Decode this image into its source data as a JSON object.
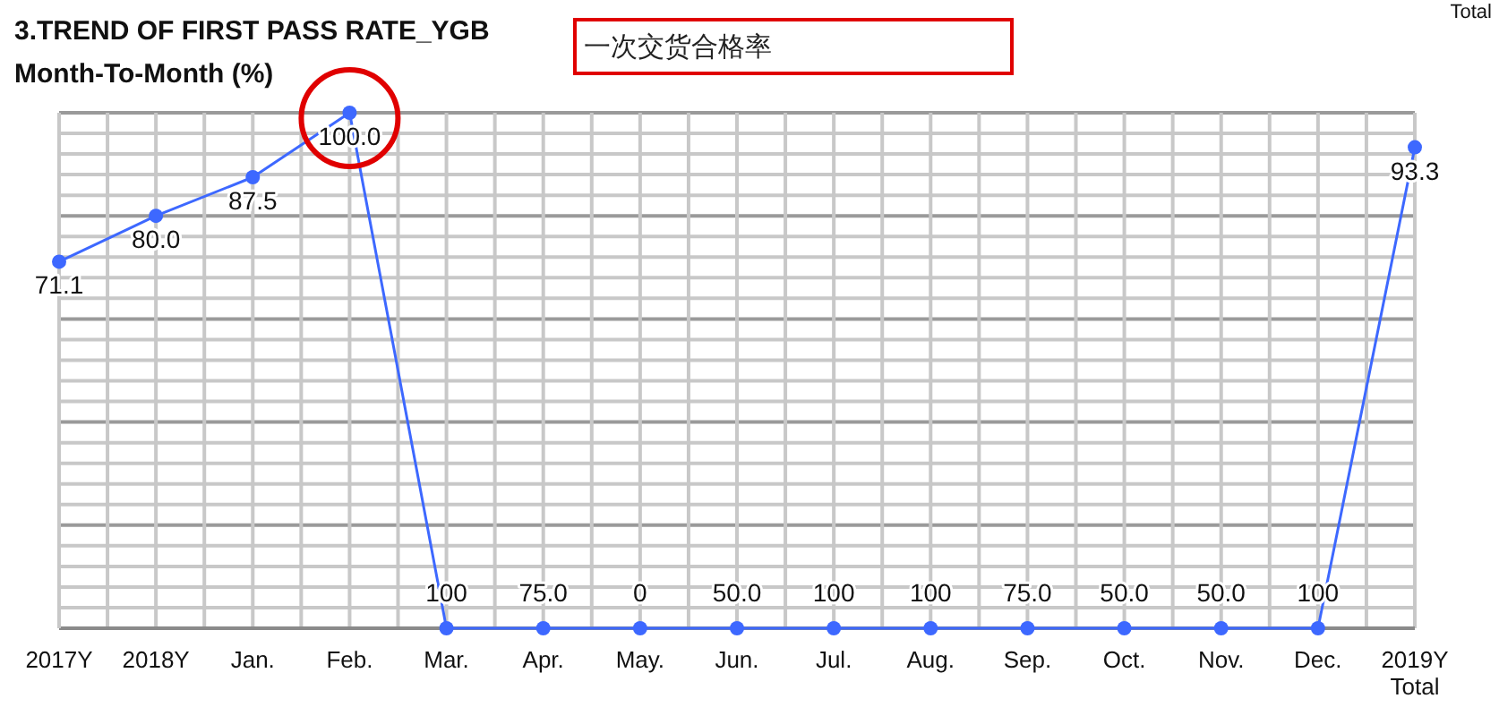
{
  "chart_data": {
    "type": "line",
    "title": "3.TREND OF FIRST PASS RATE_YGB",
    "subtitle": "Month-To-Month (%)",
    "annotations": [
      "一次交货合格率",
      "Total",
      {
        "text": "100",
        "x": "Mar.",
        "y": 0
      },
      {
        "text": "75.0",
        "x": "Apr.",
        "y": 0
      },
      {
        "text": "50.0",
        "x": "Jun.",
        "y": 0
      },
      {
        "text": "100",
        "x": "Jul.",
        "y": 0
      },
      {
        "text": "100",
        "x": "Aug.",
        "y": 0
      },
      {
        "text": "75.0",
        "x": "Sep.",
        "y": 0
      },
      {
        "text": "50.0",
        "x": "Oct.",
        "y": 0
      },
      {
        "text": "50.0",
        "x": "Nov.",
        "y": 0
      },
      {
        "text": "100",
        "x": "Dec.",
        "y": 0
      }
    ],
    "categories": [
      "2017Y",
      "2018Y",
      "Jan.",
      "Feb.",
      "Mar.",
      "Apr.",
      "May.",
      "Jun.",
      "Jul.",
      "Aug.",
      "Sep.",
      "Oct.",
      "Nov.",
      "Dec.",
      "2019Y\nTotal"
    ],
    "series": [
      {
        "color": "#3d68ff",
        "values": [
          71.1,
          80.0,
          87.5,
          100.0,
          0,
          0,
          0,
          0,
          0,
          0,
          0,
          0,
          0,
          0,
          93.3
        ],
        "value_labels": [
          "71.1",
          "80.0",
          "87.5",
          "100.0",
          null,
          null,
          "0",
          null,
          null,
          null,
          null,
          null,
          null,
          null,
          "93.3"
        ]
      }
    ],
    "ylim": [
      0,
      100
    ],
    "yticks": [
      {
        "value": 0,
        "label": null
      },
      {
        "value": 4,
        "label": null
      },
      {
        "value": 8,
        "label": null
      },
      {
        "value": 12,
        "label": null
      },
      {
        "value": 16,
        "label": null
      },
      {
        "value": 20,
        "label": null
      },
      {
        "value": 24,
        "label": null
      },
      {
        "value": 28,
        "label": null
      },
      {
        "value": 32,
        "label": null
      },
      {
        "value": 36,
        "label": null
      },
      {
        "value": 40,
        "label": null
      },
      {
        "value": 44,
        "label": null
      },
      {
        "value": 48,
        "label": null
      },
      {
        "value": 52,
        "label": null
      },
      {
        "value": 56,
        "label": null
      },
      {
        "value": 60,
        "label": null
      },
      {
        "value": 64,
        "label": null
      },
      {
        "value": 68,
        "label": null
      },
      {
        "value": 72,
        "label": null
      },
      {
        "value": 76,
        "label": null
      },
      {
        "value": 80,
        "label": null
      },
      {
        "value": 84,
        "label": null
      },
      {
        "value": 88,
        "label": null
      },
      {
        "value": 92,
        "label": null
      },
      {
        "value": 96,
        "label": null
      },
      {
        "value": 100,
        "label": null
      }
    ],
    "grid": true,
    "marker": "circle",
    "tick_labels": "x"
  }
}
